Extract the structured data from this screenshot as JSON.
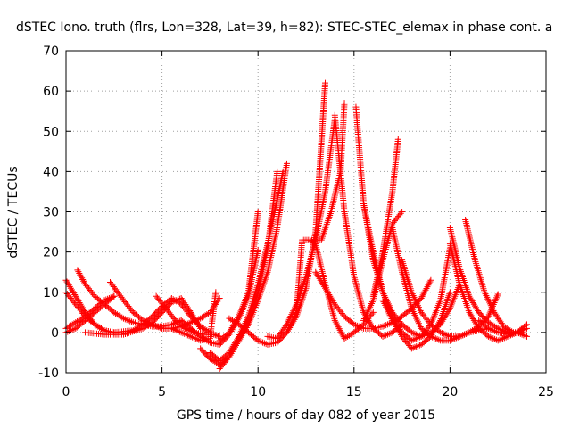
{
  "chart_data": {
    "type": "scatter",
    "title": "dSTEC Iono. truth (flrs, Lon=328, Lat=39, h=82): STEC-STEC_elemax in phase cont. a",
    "xlabel": "GPS time / hours of day 082 of year 2015",
    "ylabel": "dSTEC  / TECUs",
    "xlim": [
      0,
      25
    ],
    "ylim": [
      -10,
      70
    ],
    "xticks": [
      "0",
      "5",
      "10",
      "15",
      "20",
      "25"
    ],
    "yticks": [
      "-10",
      "0",
      "10",
      "20",
      "30",
      "40",
      "50",
      "60",
      "70"
    ],
    "grid": true,
    "marker": "+",
    "color": "#ff0000",
    "series": [
      {
        "x": [
          0.0,
          0.5,
          1.0,
          1.5,
          2.0,
          2.5
        ],
        "y": [
          13,
          9,
          5,
          2,
          0.5,
          0
        ]
      },
      {
        "x": [
          0.0,
          0.5,
          1.0,
          1.5,
          2.0,
          2.5
        ],
        "y": [
          10,
          7,
          4,
          2,
          0.5,
          0
        ]
      },
      {
        "x": [
          0.0,
          0.5,
          1.0,
          1.5,
          2.0,
          2.5
        ],
        "y": [
          0,
          1,
          3,
          5,
          7,
          9
        ]
      },
      {
        "x": [
          0.0,
          0.5,
          1.0,
          1.5,
          2.0,
          2.5
        ],
        "y": [
          1,
          2.5,
          4,
          6,
          8,
          9
        ]
      },
      {
        "x": [
          0.6,
          1.0,
          1.5,
          2.0,
          2.5,
          3.0,
          3.5,
          4.0,
          4.5,
          5.0,
          5.5,
          6.0
        ],
        "y": [
          15.5,
          12,
          9,
          7,
          5,
          3.5,
          2.5,
          2,
          1.5,
          1.5,
          2,
          3
        ]
      },
      {
        "x": [
          2.3,
          3.0,
          3.5,
          4.0,
          4.5,
          5.0,
          5.5,
          6.0,
          6.5,
          7.0,
          7.5,
          8.0
        ],
        "y": [
          12.5,
          8,
          5,
          3,
          2,
          1,
          1,
          1.5,
          2.5,
          3.5,
          5,
          8.5
        ]
      },
      {
        "x": [
          1.0,
          2.0,
          3.0,
          4.0,
          4.5,
          5.0,
          5.5,
          6.0,
          6.5,
          7.0
        ],
        "y": [
          0,
          -0.5,
          -0.5,
          1,
          2.5,
          5,
          7.5,
          8.5,
          5,
          1
        ]
      },
      {
        "x": [
          2.5,
          3.5,
          4.0,
          4.5,
          5.0,
          5.5,
          6.0,
          6.5,
          7.0,
          7.5
        ],
        "y": [
          0,
          0.5,
          2,
          4,
          6.5,
          8.5,
          7,
          4,
          1.5,
          0
        ]
      },
      {
        "x": [
          4.7,
          5.2,
          5.7,
          6.2,
          6.7,
          7.2,
          7.7,
          8.0
        ],
        "y": [
          9,
          6,
          3,
          1,
          0,
          -0.5,
          -0.5,
          -1
        ]
      },
      {
        "x": [
          5.0,
          5.5,
          6.0,
          6.5,
          7.0,
          7.5,
          7.8
        ],
        "y": [
          1,
          1,
          0,
          -1,
          -2,
          -1.5,
          10
        ]
      },
      {
        "x": [
          6.0,
          6.5,
          7.0,
          7.5,
          8.0,
          8.5,
          9.0,
          9.5,
          10.0
        ],
        "y": [
          3,
          1,
          -1,
          -2.5,
          -3,
          -0.5,
          3.5,
          9,
          20.5
        ]
      },
      {
        "x": [
          7.0,
          7.5,
          8.0,
          8.5,
          9.0,
          9.5,
          10.0,
          10.5,
          11.0
        ],
        "y": [
          -4,
          -6.5,
          -8,
          -6,
          -2,
          3,
          10,
          21,
          40
        ]
      },
      {
        "x": [
          7.5,
          8.0,
          8.5,
          9.0,
          9.5,
          10.0,
          10.5,
          11.0,
          11.3
        ],
        "y": [
          -5,
          -7,
          -5,
          -1,
          4,
          12,
          22,
          33,
          40
        ]
      },
      {
        "x": [
          8.0,
          8.5,
          9.0,
          9.5,
          10.0,
          10.5,
          11.0,
          11.5
        ],
        "y": [
          -9,
          -6,
          -2,
          2,
          8,
          15,
          26,
          42
        ]
      },
      {
        "x": [
          8.0,
          8.5,
          9.0,
          9.5,
          10.0
        ],
        "y": [
          -2,
          0,
          4,
          10,
          30
        ]
      },
      {
        "x": [
          8.5,
          9.0,
          9.5,
          10.0,
          10.5,
          11.0,
          11.5,
          12.0,
          12.5,
          13.0,
          13.5
        ],
        "y": [
          3.5,
          2,
          0,
          -2,
          -3,
          -2.5,
          0,
          4,
          11,
          25,
          62
        ]
      },
      {
        "x": [
          10.5,
          11.0,
          11.5,
          12.0,
          12.5,
          13.0,
          13.5,
          14.0
        ],
        "y": [
          -1,
          -1.5,
          2,
          7,
          14,
          23,
          35,
          53
        ]
      },
      {
        "x": [
          11.5,
          12.0,
          12.3,
          12.8,
          13.3,
          13.8,
          14.3,
          14.5
        ],
        "y": [
          0,
          5,
          23,
          23,
          23,
          30,
          40,
          57
        ]
      },
      {
        "x": [
          12.7,
          13.0,
          13.5,
          14.0,
          14.5,
          15.0,
          15.5,
          16.0
        ],
        "y": [
          23,
          22,
          12,
          3,
          -1.5,
          0,
          2,
          5
        ]
      },
      {
        "x": [
          14.0,
          14.5,
          15.0,
          15.5,
          16.0,
          16.5,
          17.0,
          17.5
        ],
        "y": [
          54,
          30,
          14,
          5,
          1,
          -1,
          0,
          2
        ]
      },
      {
        "x": [
          13.0,
          13.5,
          14.0,
          14.5,
          15.0,
          15.5,
          16.0,
          16.5,
          17.0,
          17.5,
          18.0,
          18.5,
          19.0
        ],
        "y": [
          15,
          11,
          7,
          4,
          2,
          1,
          1,
          1.5,
          2.5,
          4,
          6,
          8.5,
          13
        ]
      },
      {
        "x": [
          15.1,
          15.5,
          16.0,
          16.5,
          17.0,
          17.5,
          18.0,
          18.5,
          19.0,
          19.5,
          20.0,
          20.5
        ],
        "y": [
          56,
          32,
          18,
          10,
          5,
          2,
          0,
          -1,
          0,
          2,
          6,
          12
        ]
      },
      {
        "x": [
          15.5,
          16.0,
          16.5,
          17.0,
          17.5,
          18.0,
          18.5,
          19.0,
          19.5,
          20.0
        ],
        "y": [
          32,
          20,
          10,
          4,
          0,
          -2,
          -1,
          2,
          8,
          21
        ]
      },
      {
        "x": [
          15.5,
          16.0,
          16.5,
          17.0,
          17.5
        ],
        "y": [
          3,
          8,
          18,
          27,
          30
        ]
      },
      {
        "x": [
          16.0,
          16.5,
          17.0,
          17.3
        ],
        "y": [
          9,
          20,
          35,
          48
        ]
      },
      {
        "x": [
          17.0,
          17.5,
          18.0,
          18.5,
          19.0,
          19.5,
          20.0,
          20.5,
          21.0,
          21.5,
          22.0,
          22.5
        ],
        "y": [
          26,
          15,
          6,
          1,
          -1,
          -2,
          -2,
          -1,
          0,
          1.5,
          4,
          9.5
        ]
      },
      {
        "x": [
          17.5,
          18.0,
          18.5,
          19.0,
          19.5,
          20.0,
          20.5,
          21.0,
          21.5,
          22.0
        ],
        "y": [
          18,
          10,
          5,
          2,
          0,
          -1,
          -1,
          0,
          0.5,
          1
        ]
      },
      {
        "x": [
          16.5,
          17.0,
          17.5,
          18.0,
          18.5,
          19.0,
          19.5,
          20.0
        ],
        "y": [
          8,
          3,
          -1,
          -4,
          -3,
          -1,
          3,
          10
        ]
      },
      {
        "x": [
          20.0,
          20.5,
          21.0,
          21.5,
          22.0,
          22.5,
          23.0,
          23.5,
          24.0
        ],
        "y": [
          26,
          16,
          9,
          5,
          2.5,
          1,
          0,
          0,
          2
        ]
      },
      {
        "x": [
          20.8,
          21.3,
          21.8,
          22.3,
          22.8,
          23.3,
          23.8
        ],
        "y": [
          28,
          18,
          10,
          5,
          1.5,
          0,
          0
        ]
      },
      {
        "x": [
          20.0,
          20.5,
          21.0,
          21.5,
          22.0,
          22.5,
          23.0,
          23.5,
          24.0
        ],
        "y": [
          22,
          12,
          5,
          1,
          -1,
          -2,
          -1,
          0,
          -1
        ]
      },
      {
        "x": [
          21.5,
          22.0,
          22.5,
          23.0,
          23.5,
          24.0
        ],
        "y": [
          3,
          1,
          0,
          -0.5,
          0,
          1
        ]
      }
    ]
  }
}
